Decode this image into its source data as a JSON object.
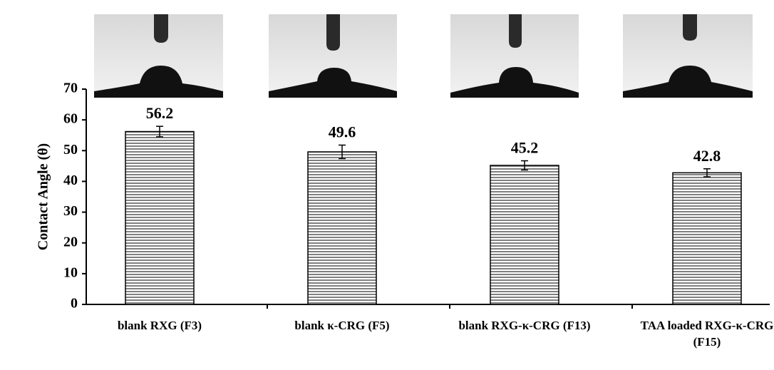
{
  "chart_data": {
    "type": "bar",
    "y_label": "Contact Angle (θ)",
    "categories": [
      "blank RXG (F3)",
      "blank κ-CRG (F5)",
      "blank RXG-κ-CRG (F13)",
      "TAA loaded RXG-κ-CRG (F15)"
    ],
    "values": [
      56.2,
      49.6,
      45.2,
      42.8
    ],
    "errors": [
      1.7,
      2.2,
      1.5,
      1.3
    ],
    "color": "#808080",
    "ylim": [
      0,
      70
    ],
    "yticks": [
      0,
      10,
      20,
      30,
      40,
      50,
      60,
      70
    ]
  }
}
